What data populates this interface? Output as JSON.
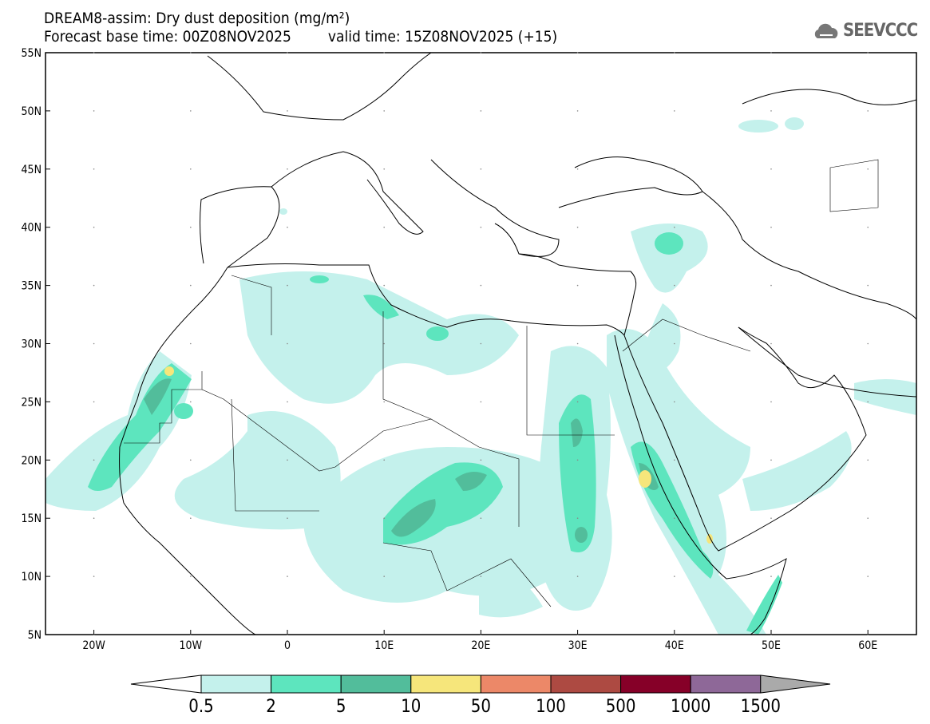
{
  "title": {
    "line1": "DREAM8-assim: Dry dust deposition (mg/m²)",
    "base_time": "Forecast base time: 00Z08NOV2025",
    "valid_time": "valid time: 15Z08NOV2025 (+15)"
  },
  "logo": {
    "text": "SEEVCCC"
  },
  "axes": {
    "lat_labels": [
      "55N",
      "50N",
      "45N",
      "40N",
      "35N",
      "30N",
      "25N",
      "20N",
      "15N",
      "10N",
      "5N"
    ],
    "lon_labels": [
      "20W",
      "10W",
      "0",
      "10E",
      "20E",
      "30E",
      "40E",
      "50E",
      "60E"
    ]
  },
  "colorbar": {
    "labels": [
      "0.5",
      "2",
      "5",
      "10",
      "50",
      "100",
      "500",
      "1000",
      "1500"
    ],
    "colors": [
      "#c4f1ec",
      "#5de5be",
      "#52bd9b",
      "#f6e67b",
      "#ec8868",
      "#ad4a42",
      "#860028",
      "#8e6898"
    ],
    "over_color": "#aaaaaa"
  }
}
